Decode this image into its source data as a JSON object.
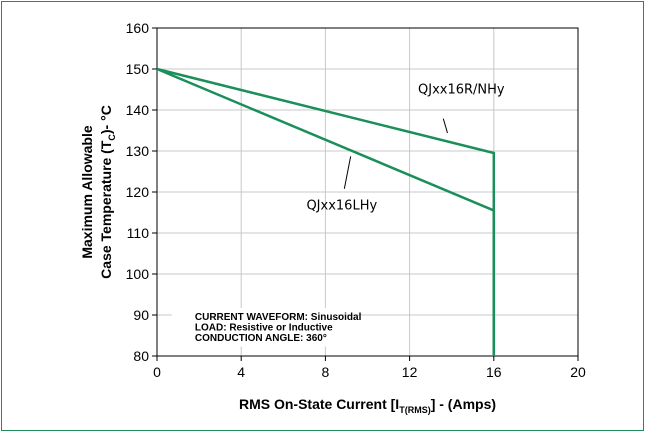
{
  "chart_data": {
    "type": "line",
    "title": "",
    "xlabel": "RMS On-State Current [I",
    "xlabel_sub": "T(RMS)",
    "xlabel_end": "] - (Amps)",
    "ylabel_line1": "Maximum Allowable",
    "ylabel_line2_pre": "Case Temperature (T",
    "ylabel_line2_sub": "C",
    "ylabel_line2_post": ")- °C",
    "xlim": [
      0,
      20
    ],
    "ylim": [
      80,
      160
    ],
    "x_ticks": [
      0,
      4,
      8,
      12,
      16,
      20
    ],
    "y_ticks": [
      80,
      90,
      100,
      110,
      120,
      130,
      140,
      150,
      160
    ],
    "grid": true,
    "line_color": "#1a8f5a",
    "series": [
      {
        "name": "QJxx16R/NHy",
        "points": [
          [
            0,
            150
          ],
          [
            16,
            129.5
          ],
          [
            16,
            80
          ]
        ]
      },
      {
        "name": "QJxx16LHy",
        "points": [
          [
            0,
            150
          ],
          [
            16,
            115.5
          ],
          [
            16,
            80
          ]
        ]
      }
    ],
    "annotations": [
      "CURRENT WAVEFORM: Sinusoidal",
      "LOAD: Resistive or Inductive",
      "CONDUCTION ANGLE: 360°"
    ]
  }
}
